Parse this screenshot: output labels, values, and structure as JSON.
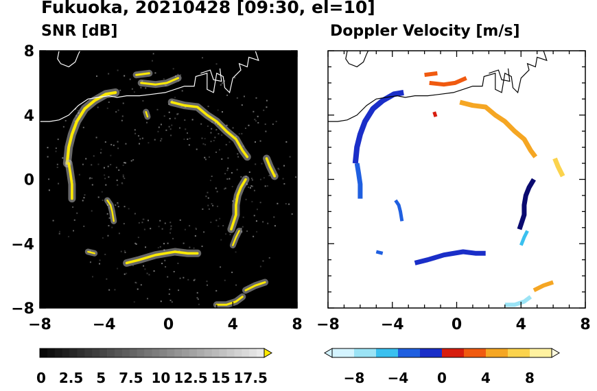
{
  "title": "Fukuoka, 20210428 [09:30, el=10]",
  "panels": [
    {
      "subtitle": "SNR [dB]"
    },
    {
      "subtitle": "Doppler Velocity [m/s]"
    }
  ],
  "chart_data": [
    {
      "type": "heatmap",
      "title": "SNR [dB]",
      "xlim": [
        -8,
        8
      ],
      "ylim": [
        -8,
        8
      ],
      "x_ticks": [
        "−8",
        "−4",
        "0",
        "4",
        "8"
      ],
      "y_ticks": [
        "8",
        "4",
        "0",
        "−4",
        "−8"
      ],
      "colormap": "grayscale to yellow",
      "colorbar": {
        "min": 0,
        "max": 18.75,
        "extend": "max",
        "tick_labels": [
          "0",
          "2.5",
          "5",
          "7.5",
          "10",
          "12.5",
          "15",
          "17.5"
        ]
      },
      "background": "#000000",
      "colors": {
        "high": "#ffea00",
        "mid": "#9a9a9a",
        "low": "#000000"
      }
    },
    {
      "type": "heatmap",
      "title": "Doppler Velocity [m/s]",
      "xlim": [
        -8,
        8
      ],
      "ylim": [
        -8,
        8
      ],
      "x_ticks": [
        "−8",
        "−4",
        "0",
        "4",
        "8"
      ],
      "y_ticks": [
        "8",
        "4",
        "0",
        "−4",
        "−8"
      ],
      "colormap": "blue-white-red diverging",
      "colorbar": {
        "min": -10,
        "max": 10,
        "extend": "both",
        "tick_labels": [
          "−8",
          "−4",
          "0",
          "4",
          "8"
        ]
      },
      "colors": {
        "negative_strong": "#0a0a8a",
        "negative": "#1f5fe0",
        "negative_weak": "#9be3f5",
        "positive_weak": "#fff2a0",
        "positive": "#f5a623",
        "positive_strong": "#d71d0e"
      }
    }
  ]
}
